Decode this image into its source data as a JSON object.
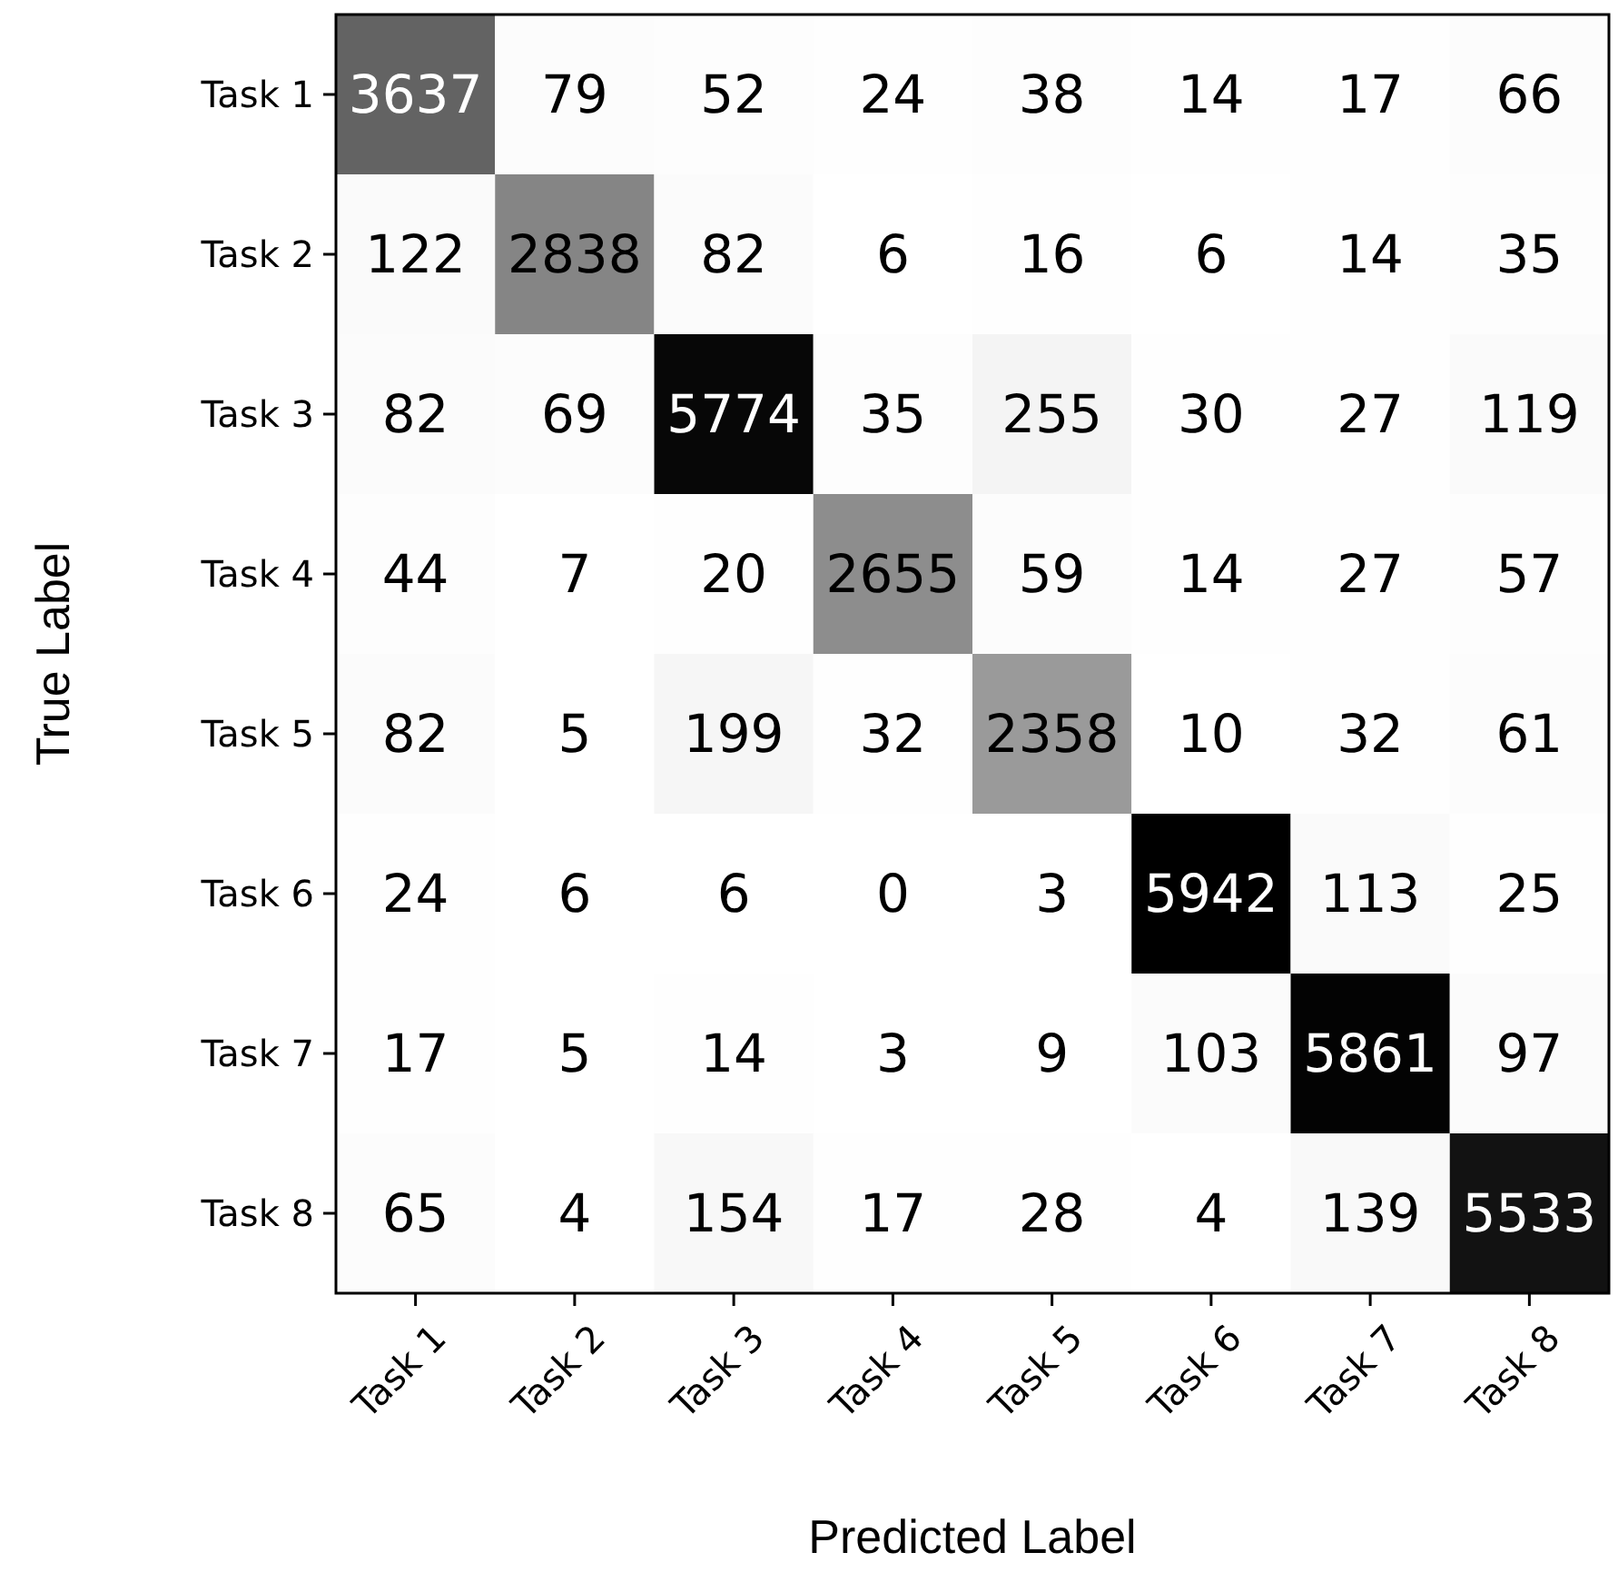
{
  "chart_data": {
    "type": "heatmap",
    "xlabel": "Predicted Label",
    "ylabel": "True Label",
    "categories": [
      "Task 1",
      "Task 2",
      "Task 3",
      "Task 4",
      "Task 5",
      "Task 6",
      "Task 7",
      "Task 8"
    ],
    "y_categories": [
      "Task 1",
      "Task 2",
      "Task 3",
      "Task 4",
      "Task 5",
      "Task 6",
      "Task 7",
      "Task 8"
    ],
    "cells": [
      [
        3637,
        79,
        52,
        24,
        38,
        14,
        17,
        66
      ],
      [
        122,
        2838,
        82,
        6,
        16,
        6,
        14,
        35
      ],
      [
        82,
        69,
        5774,
        35,
        255,
        30,
        27,
        119
      ],
      [
        44,
        7,
        20,
        2655,
        59,
        14,
        27,
        57
      ],
      [
        82,
        5,
        199,
        32,
        2358,
        10,
        32,
        61
      ],
      [
        24,
        6,
        6,
        0,
        3,
        5942,
        113,
        25
      ],
      [
        17,
        5,
        14,
        3,
        9,
        103,
        5861,
        97
      ],
      [
        65,
        4,
        154,
        17,
        28,
        4,
        139,
        5533
      ]
    ],
    "data_labels": true
  }
}
